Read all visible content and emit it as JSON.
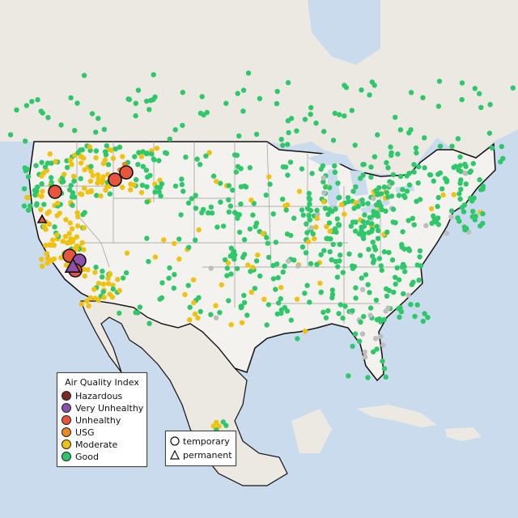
{
  "legend": {
    "title": "Air Quality Index",
    "categories": [
      {
        "label": "Hazardous",
        "color": "#7a2b22"
      },
      {
        "label": "Very Unhealthy",
        "color": "#8e4fa8"
      },
      {
        "label": "Unhealthy",
        "color": "#e8553a"
      },
      {
        "label": "USG",
        "color": "#e88b1c"
      },
      {
        "label": "Moderate",
        "color": "#f0c20e"
      },
      {
        "label": "Good",
        "color": "#2ec86b"
      }
    ]
  },
  "shape_legend": {
    "temporary": "temporary",
    "permanent": "permanent"
  },
  "colors": {
    "water": "#c9dbec",
    "land": "#f1efe9",
    "border": "#111111",
    "state_line": "#9a9a9a",
    "gray_station": "#bdbdbd"
  }
}
